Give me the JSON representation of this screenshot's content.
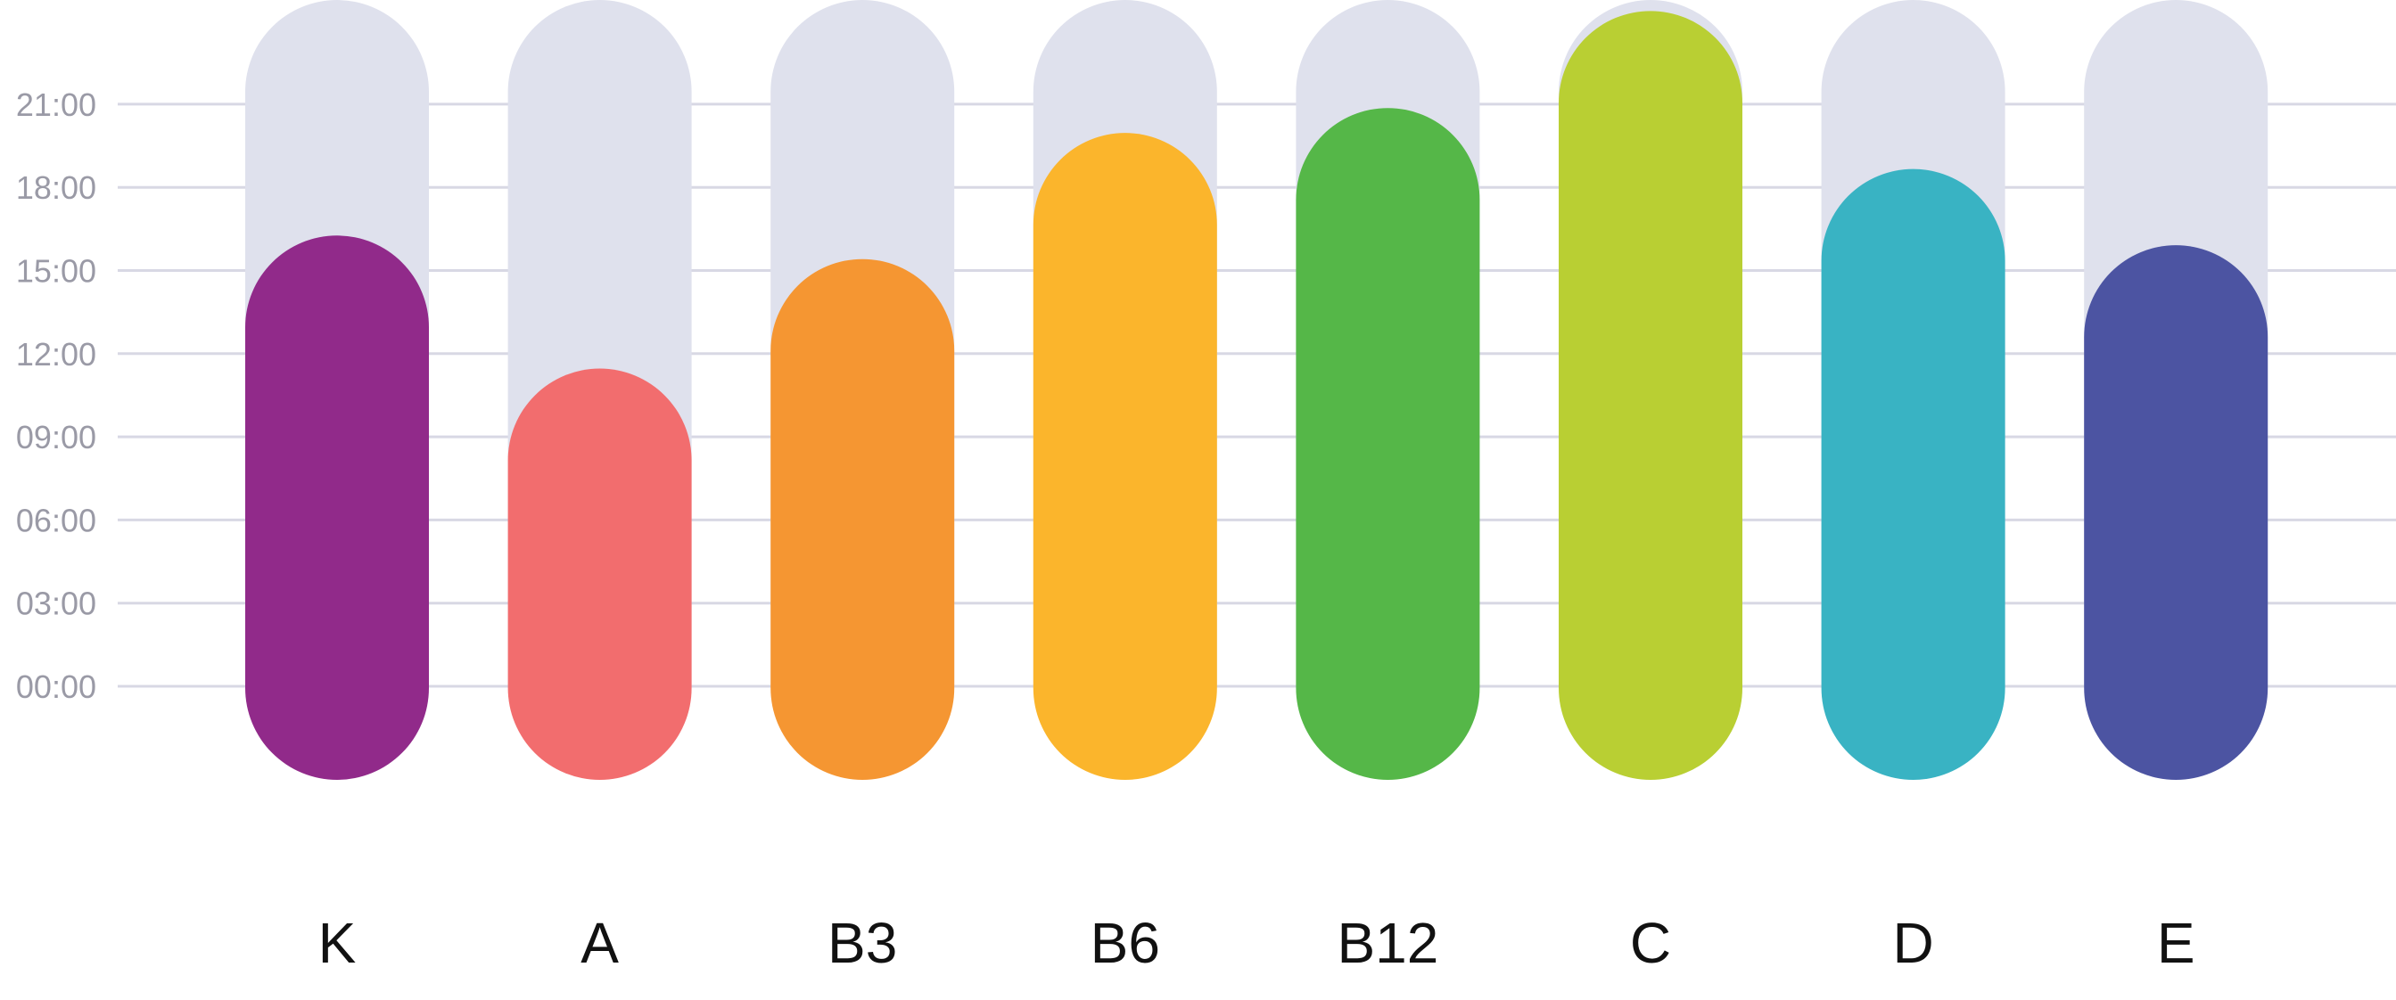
{
  "chart_data": {
    "type": "bar",
    "categories": [
      "K",
      "A",
      "B3",
      "B6",
      "B12",
      "C",
      "D",
      "E"
    ],
    "values": [
      12.95,
      8.15,
      12.1,
      16.65,
      17.55,
      21.05,
      15.35,
      12.6
    ],
    "colors": [
      "#912a8a",
      "#f26d6e",
      "#f59632",
      "#fbb52c",
      "#55b748",
      "#b9cf33",
      "#39b3c3",
      "#4c54a2"
    ],
    "track_color": "#dfe1ed",
    "grid_color": "#d8d8e4",
    "yticks": [
      "00:00",
      "03:00",
      "06:00",
      "09:00",
      "12:00",
      "15:00",
      "18:00",
      "21:00"
    ],
    "ylim": [
      0,
      24
    ],
    "title": "",
    "xlabel": "",
    "ylabel": "",
    "grid": true
  }
}
